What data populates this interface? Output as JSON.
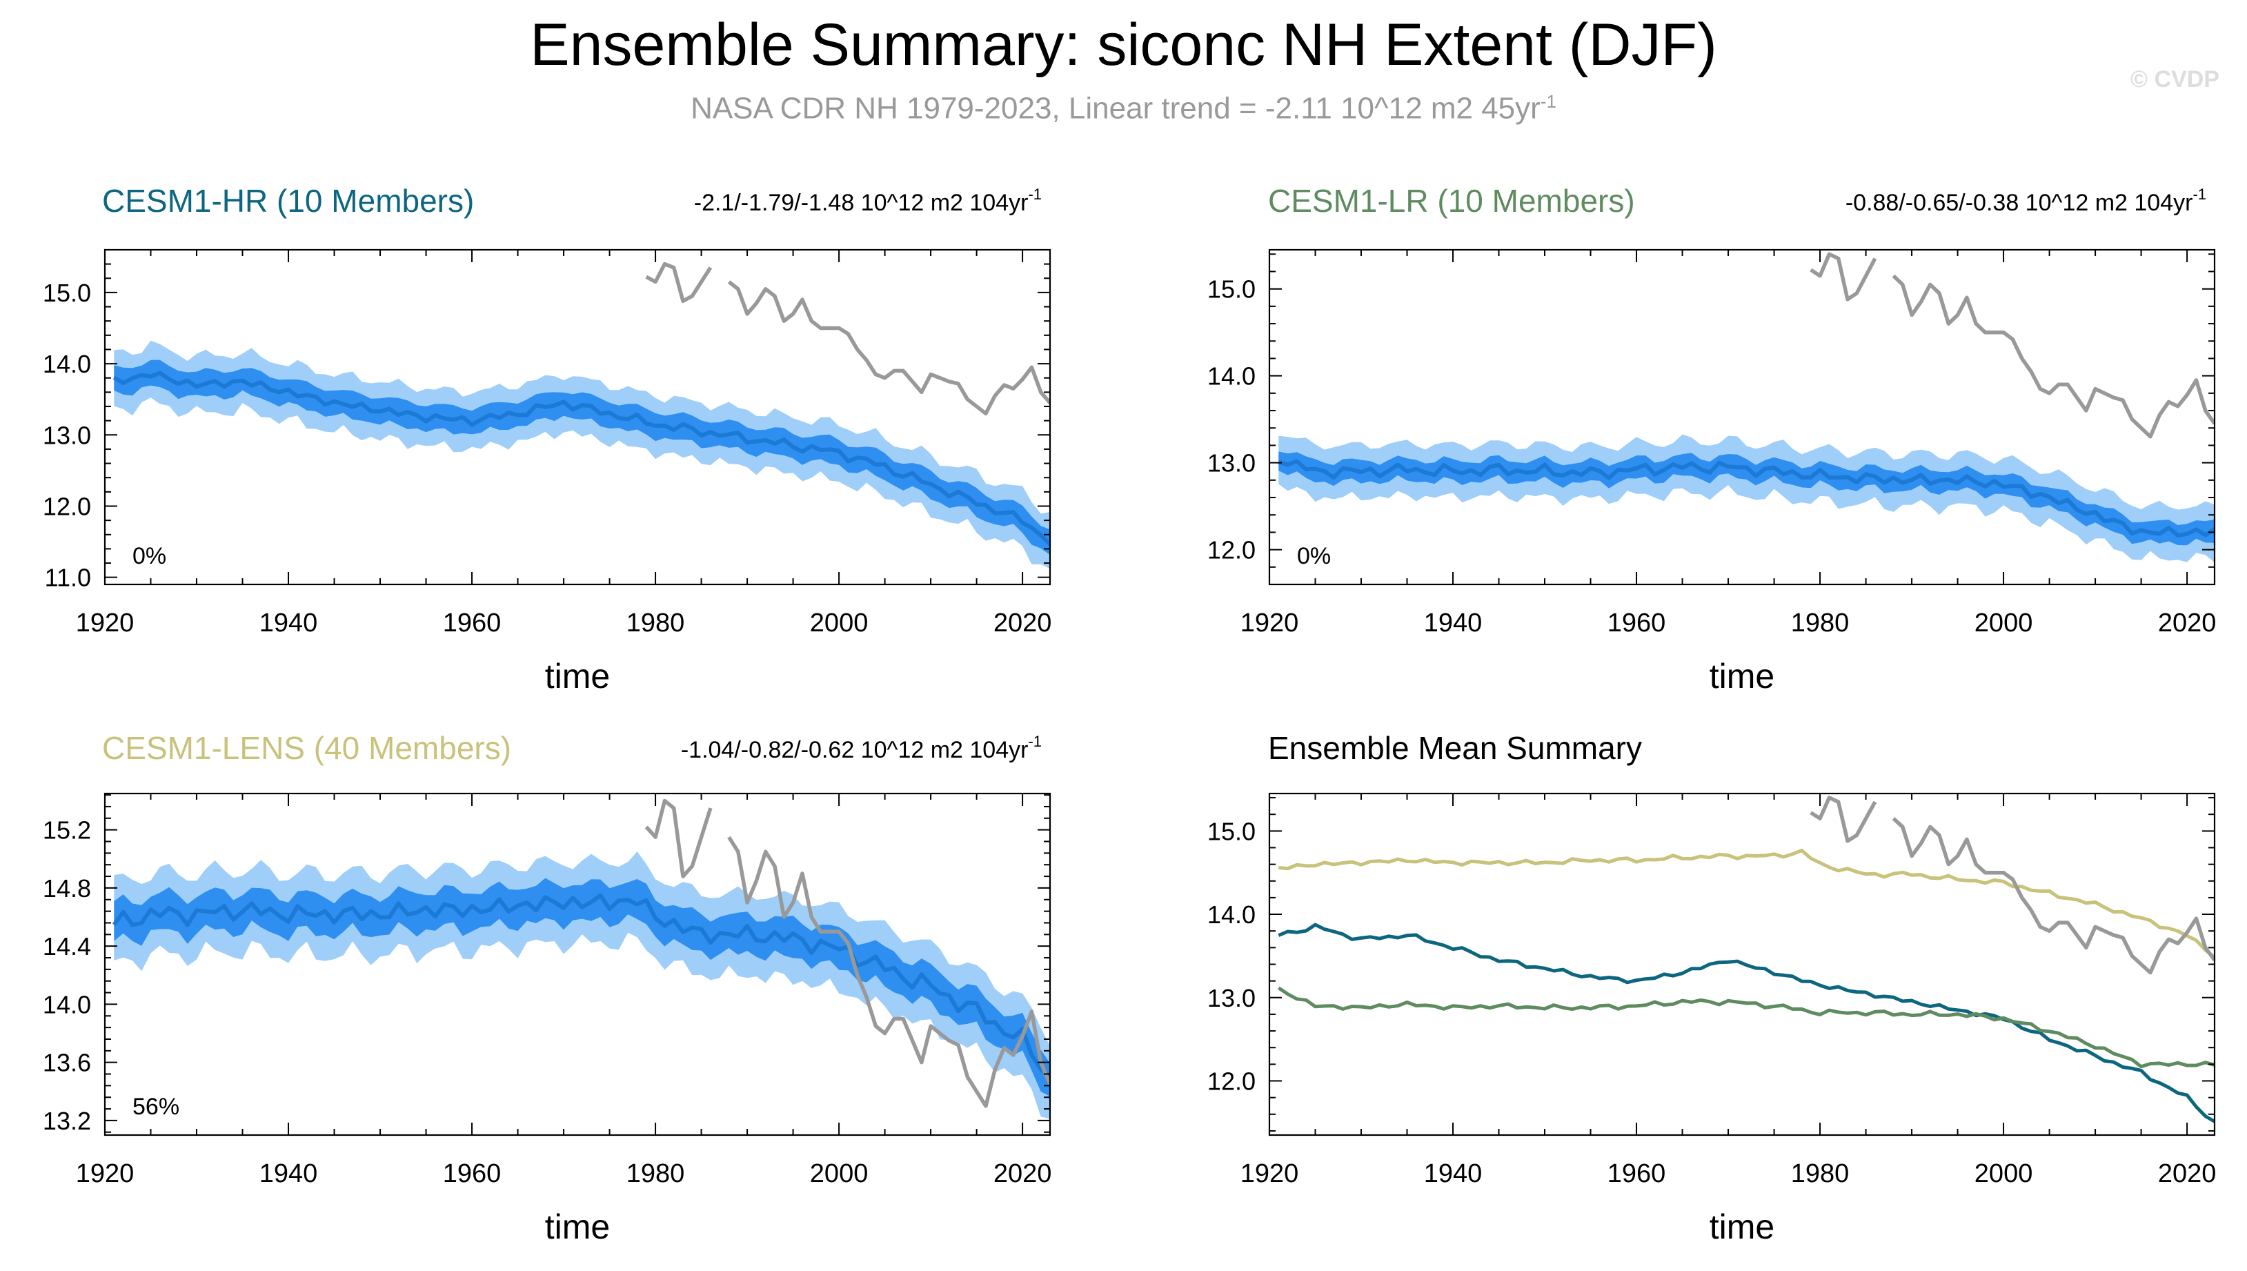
{
  "figure": {
    "title": "Ensemble Summary: siconc NH Extent (DJF)",
    "subtitle_main": "NASA CDR NH 1979-2023, Linear trend = -2.11 10^12 m2 45yr",
    "subtitle_sup": "-1",
    "copyright": "© CVDP"
  },
  "colors": {
    "band_outer": "#9fcff9",
    "band_inner": "#2f8ff0",
    "mean_line": "#1c7ad6",
    "obs_line": "#999999",
    "hr": "#0d6680",
    "lr": "#5e8c60",
    "lens": "#c8c27a"
  },
  "chart_data": [
    {
      "id": "hr",
      "type": "area",
      "title": "CESM1-HR (10 Members)",
      "title_color": "#0d6680",
      "trend": "-2.1/-1.79/-1.48 10^12 m2 104yr",
      "trend_sup": "-1",
      "percent_label": "0%",
      "xlabel": "time",
      "ylabel": "",
      "xlim": [
        1920,
        2023
      ],
      "ylim": [
        10.9,
        15.6
      ],
      "xticks": [
        1920,
        1940,
        1960,
        1980,
        2000,
        2020
      ],
      "xtick_labels": [
        "1920",
        "1940",
        "1960",
        "1980",
        "2000",
        "2020"
      ],
      "yticks": [
        11.0,
        12.0,
        13.0,
        14.0,
        15.0
      ],
      "ytick_labels": [
        "11.0",
        "12.0",
        "13.0",
        "14.0",
        "15.0"
      ],
      "mean_anchors": [
        [
          1921,
          13.75
        ],
        [
          1925,
          13.85
        ],
        [
          1930,
          13.7
        ],
        [
          1935,
          13.75
        ],
        [
          1940,
          13.6
        ],
        [
          1945,
          13.45
        ],
        [
          1950,
          13.35
        ],
        [
          1955,
          13.25
        ],
        [
          1960,
          13.2
        ],
        [
          1965,
          13.3
        ],
        [
          1970,
          13.45
        ],
        [
          1975,
          13.3
        ],
        [
          1980,
          13.15
        ],
        [
          1985,
          13.05
        ],
        [
          1990,
          12.95
        ],
        [
          1995,
          12.85
        ],
        [
          2000,
          12.75
        ],
        [
          2005,
          12.55
        ],
        [
          2010,
          12.3
        ],
        [
          2015,
          12.05
        ],
        [
          2020,
          11.8
        ],
        [
          2023,
          11.5
        ]
      ],
      "inner_half_width": 0.18,
      "outer_half_width": 0.4,
      "series": [
        {
          "name": "NASA CDR NH obs",
          "x": [
            1979,
            1980,
            1981,
            1982,
            1983,
            1984,
            1985,
            1986,
            1987,
            1988,
            1989,
            1990,
            1991,
            1992,
            1993,
            1994,
            1995,
            1996,
            1997,
            1998,
            1999,
            2000,
            2001,
            2002,
            2003,
            2004,
            2005,
            2006,
            2007,
            2008,
            2009,
            2010,
            2011,
            2012,
            2013,
            2014,
            2015,
            2016,
            2017,
            2018,
            2019,
            2020,
            2021,
            2022,
            2023
          ],
          "values": [
            15.22,
            15.15,
            15.4,
            15.35,
            14.88,
            14.95,
            15.15,
            15.35,
            null,
            15.15,
            15.05,
            14.7,
            14.85,
            15.05,
            14.95,
            14.6,
            14.7,
            14.9,
            14.6,
            14.5,
            14.5,
            14.5,
            14.42,
            14.2,
            14.05,
            13.85,
            13.8,
            13.9,
            13.9,
            13.75,
            13.6,
            13.85,
            13.8,
            13.75,
            13.72,
            13.5,
            13.4,
            13.3,
            13.55,
            13.7,
            13.65,
            13.78,
            13.95,
            13.6,
            13.45
          ]
        }
      ]
    },
    {
      "id": "lr",
      "type": "area",
      "title": "CESM1-LR (10 Members)",
      "title_color": "#5e8c60",
      "trend": "-0.88/-0.65/-0.38 10^12 m2 104yr",
      "trend_sup": "-1",
      "percent_label": "0%",
      "xlabel": "time",
      "ylabel": "",
      "xlim": [
        1920,
        2023
      ],
      "ylim": [
        11.6,
        15.45
      ],
      "xticks": [
        1920,
        1940,
        1960,
        1980,
        2000,
        2020
      ],
      "xtick_labels": [
        "1920",
        "1940",
        "1960",
        "1980",
        "2000",
        "2020"
      ],
      "yticks": [
        12.0,
        13.0,
        14.0,
        15.0
      ],
      "ytick_labels": [
        "12.0",
        "13.0",
        "14.0",
        "15.0"
      ],
      "mean_anchors": [
        [
          1921,
          13.05
        ],
        [
          1925,
          12.9
        ],
        [
          1930,
          12.9
        ],
        [
          1935,
          12.92
        ],
        [
          1940,
          12.9
        ],
        [
          1945,
          12.92
        ],
        [
          1950,
          12.9
        ],
        [
          1955,
          12.88
        ],
        [
          1960,
          12.92
        ],
        [
          1965,
          12.95
        ],
        [
          1970,
          12.95
        ],
        [
          1975,
          12.9
        ],
        [
          1980,
          12.85
        ],
        [
          1985,
          12.82
        ],
        [
          1990,
          12.8
        ],
        [
          1995,
          12.8
        ],
        [
          2000,
          12.75
        ],
        [
          2005,
          12.6
        ],
        [
          2010,
          12.4
        ],
        [
          2015,
          12.2
        ],
        [
          2020,
          12.2
        ],
        [
          2023,
          12.2
        ]
      ],
      "inner_half_width": 0.12,
      "outer_half_width": 0.3,
      "series": [
        {
          "name": "NASA CDR NH obs",
          "x": [
            1979,
            1980,
            1981,
            1982,
            1983,
            1984,
            1985,
            1986,
            1987,
            1988,
            1989,
            1990,
            1991,
            1992,
            1993,
            1994,
            1995,
            1996,
            1997,
            1998,
            1999,
            2000,
            2001,
            2002,
            2003,
            2004,
            2005,
            2006,
            2007,
            2008,
            2009,
            2010,
            2011,
            2012,
            2013,
            2014,
            2015,
            2016,
            2017,
            2018,
            2019,
            2020,
            2021,
            2022,
            2023
          ],
          "values": [
            15.22,
            15.15,
            15.4,
            15.35,
            14.88,
            14.95,
            15.15,
            15.35,
            null,
            15.15,
            15.05,
            14.7,
            14.85,
            15.05,
            14.95,
            14.6,
            14.7,
            14.9,
            14.6,
            14.5,
            14.5,
            14.5,
            14.42,
            14.2,
            14.05,
            13.85,
            13.8,
            13.9,
            13.9,
            13.75,
            13.6,
            13.85,
            13.8,
            13.75,
            13.72,
            13.5,
            13.4,
            13.3,
            13.55,
            13.7,
            13.65,
            13.78,
            13.95,
            13.6,
            13.45
          ]
        }
      ]
    },
    {
      "id": "lens",
      "type": "area",
      "title": "CESM1-LENS (40 Members)",
      "title_color": "#c8c27a",
      "trend": "-1.04/-0.82/-0.62 10^12 m2 104yr",
      "trend_sup": "-1",
      "percent_label": "56%",
      "xlabel": "time",
      "ylabel": "",
      "xlim": [
        1920,
        2023
      ],
      "ylim": [
        13.1,
        15.45
      ],
      "xticks": [
        1920,
        1940,
        1960,
        1980,
        2000,
        2020
      ],
      "xtick_labels": [
        "1920",
        "1940",
        "1960",
        "1980",
        "2000",
        "2020"
      ],
      "yticks": [
        13.2,
        13.6,
        14.0,
        14.4,
        14.8,
        15.2
      ],
      "ytick_labels": [
        "13.2",
        "13.6",
        "14.0",
        "14.4",
        "14.8",
        "15.2"
      ],
      "mean_anchors": [
        [
          1921,
          14.55
        ],
        [
          1925,
          14.62
        ],
        [
          1930,
          14.62
        ],
        [
          1935,
          14.65
        ],
        [
          1940,
          14.62
        ],
        [
          1945,
          14.62
        ],
        [
          1950,
          14.62
        ],
        [
          1955,
          14.65
        ],
        [
          1960,
          14.65
        ],
        [
          1965,
          14.68
        ],
        [
          1970,
          14.7
        ],
        [
          1975,
          14.7
        ],
        [
          1978,
          14.72
        ],
        [
          1980,
          14.6
        ],
        [
          1985,
          14.48
        ],
        [
          1990,
          14.48
        ],
        [
          1995,
          14.45
        ],
        [
          2000,
          14.38
        ],
        [
          2005,
          14.25
        ],
        [
          2010,
          14.12
        ],
        [
          2015,
          13.95
        ],
        [
          2020,
          13.75
        ],
        [
          2023,
          13.5
        ]
      ],
      "inner_half_width": 0.13,
      "outer_half_width": 0.28,
      "series": [
        {
          "name": "NASA CDR NH obs",
          "x": [
            1979,
            1980,
            1981,
            1982,
            1983,
            1984,
            1985,
            1986,
            1987,
            1988,
            1989,
            1990,
            1991,
            1992,
            1993,
            1994,
            1995,
            1996,
            1997,
            1998,
            1999,
            2000,
            2001,
            2002,
            2003,
            2004,
            2005,
            2006,
            2007,
            2008,
            2009,
            2010,
            2011,
            2012,
            2013,
            2014,
            2015,
            2016,
            2017,
            2018,
            2019,
            2020,
            2021,
            2022,
            2023
          ],
          "values": [
            15.22,
            15.15,
            15.4,
            15.35,
            14.88,
            14.95,
            15.15,
            15.35,
            null,
            15.15,
            15.05,
            14.7,
            14.85,
            15.05,
            14.95,
            14.6,
            14.7,
            14.9,
            14.6,
            14.5,
            14.5,
            14.5,
            14.42,
            14.2,
            14.05,
            13.85,
            13.8,
            13.9,
            13.9,
            13.75,
            13.6,
            13.85,
            13.8,
            13.75,
            13.72,
            13.5,
            13.4,
            13.3,
            13.55,
            13.7,
            13.65,
            13.78,
            13.95,
            13.6,
            13.45
          ]
        }
      ]
    },
    {
      "id": "mean",
      "type": "line",
      "title": "Ensemble Mean Summary",
      "title_color": "#000000",
      "trend": "",
      "trend_sup": "",
      "percent_label": "",
      "xlabel": "time",
      "ylabel": "",
      "xlim": [
        1920,
        2023
      ],
      "ylim": [
        11.35,
        15.45
      ],
      "xticks": [
        1920,
        1940,
        1960,
        1980,
        2000,
        2020
      ],
      "xtick_labels": [
        "1920",
        "1940",
        "1960",
        "1980",
        "2000",
        "2020"
      ],
      "yticks": [
        12.0,
        13.0,
        14.0,
        15.0
      ],
      "ytick_labels": [
        "12.0",
        "13.0",
        "14.0",
        "15.0"
      ],
      "series": [
        {
          "name": "CESM1-LENS",
          "color": "#c8c27a",
          "anchors": [
            [
              1921,
              14.55
            ],
            [
              1925,
              14.6
            ],
            [
              1930,
              14.62
            ],
            [
              1935,
              14.65
            ],
            [
              1940,
              14.62
            ],
            [
              1945,
              14.62
            ],
            [
              1950,
              14.62
            ],
            [
              1955,
              14.65
            ],
            [
              1960,
              14.65
            ],
            [
              1965,
              14.68
            ],
            [
              1970,
              14.7
            ],
            [
              1975,
              14.7
            ],
            [
              1978,
              14.75
            ],
            [
              1980,
              14.6
            ],
            [
              1985,
              14.48
            ],
            [
              1990,
              14.48
            ],
            [
              1995,
              14.42
            ],
            [
              2000,
              14.38
            ],
            [
              2005,
              14.25
            ],
            [
              2010,
              14.12
            ],
            [
              2015,
              13.95
            ],
            [
              2020,
              13.75
            ],
            [
              2023,
              13.5
            ]
          ]
        },
        {
          "name": "CESM1-HR",
          "color": "#0d6680",
          "anchors": [
            [
              1921,
              13.75
            ],
            [
              1925,
              13.85
            ],
            [
              1930,
              13.7
            ],
            [
              1935,
              13.75
            ],
            [
              1940,
              13.6
            ],
            [
              1945,
              13.45
            ],
            [
              1950,
              13.35
            ],
            [
              1955,
              13.25
            ],
            [
              1960,
              13.2
            ],
            [
              1965,
              13.3
            ],
            [
              1970,
              13.45
            ],
            [
              1975,
              13.3
            ],
            [
              1980,
              13.15
            ],
            [
              1985,
              13.05
            ],
            [
              1990,
              12.95
            ],
            [
              1995,
              12.85
            ],
            [
              2000,
              12.75
            ],
            [
              2005,
              12.5
            ],
            [
              2010,
              12.3
            ],
            [
              2015,
              12.1
            ],
            [
              2020,
              11.8
            ],
            [
              2023,
              11.5
            ]
          ]
        },
        {
          "name": "CESM1-LR",
          "color": "#5e8c60",
          "anchors": [
            [
              1921,
              13.1
            ],
            [
              1925,
              12.9
            ],
            [
              1930,
              12.88
            ],
            [
              1935,
              12.92
            ],
            [
              1940,
              12.88
            ],
            [
              1945,
              12.9
            ],
            [
              1950,
              12.88
            ],
            [
              1955,
              12.88
            ],
            [
              1960,
              12.9
            ],
            [
              1965,
              12.95
            ],
            [
              1970,
              12.95
            ],
            [
              1975,
              12.9
            ],
            [
              1980,
              12.82
            ],
            [
              1985,
              12.82
            ],
            [
              1990,
              12.8
            ],
            [
              1995,
              12.8
            ],
            [
              2000,
              12.75
            ],
            [
              2005,
              12.6
            ],
            [
              2010,
              12.42
            ],
            [
              2015,
              12.2
            ],
            [
              2020,
              12.2
            ],
            [
              2023,
              12.2
            ]
          ]
        },
        {
          "name": "NASA CDR NH obs",
          "color": "#999999",
          "x": [
            1979,
            1980,
            1981,
            1982,
            1983,
            1984,
            1985,
            1986,
            1987,
            1988,
            1989,
            1990,
            1991,
            1992,
            1993,
            1994,
            1995,
            1996,
            1997,
            1998,
            1999,
            2000,
            2001,
            2002,
            2003,
            2004,
            2005,
            2006,
            2007,
            2008,
            2009,
            2010,
            2011,
            2012,
            2013,
            2014,
            2015,
            2016,
            2017,
            2018,
            2019,
            2020,
            2021,
            2022,
            2023
          ],
          "values": [
            15.22,
            15.15,
            15.4,
            15.35,
            14.88,
            14.95,
            15.15,
            15.35,
            null,
            15.15,
            15.05,
            14.7,
            14.85,
            15.05,
            14.95,
            14.6,
            14.7,
            14.9,
            14.6,
            14.5,
            14.5,
            14.5,
            14.42,
            14.2,
            14.05,
            13.85,
            13.8,
            13.9,
            13.9,
            13.75,
            13.6,
            13.85,
            13.8,
            13.75,
            13.72,
            13.5,
            13.4,
            13.3,
            13.55,
            13.7,
            13.65,
            13.78,
            13.95,
            13.6,
            13.45
          ]
        }
      ]
    }
  ]
}
